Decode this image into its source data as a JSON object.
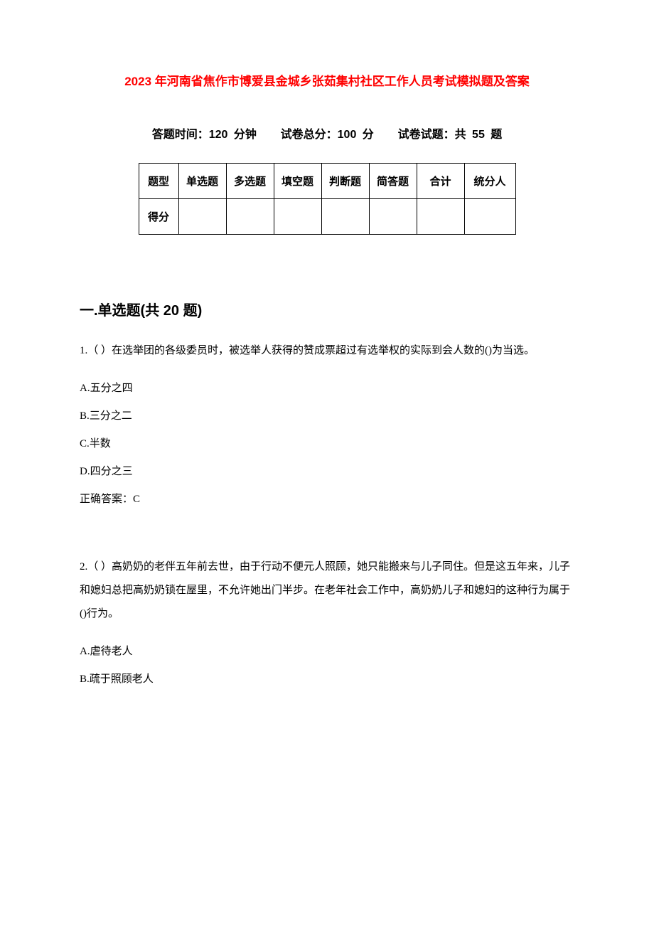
{
  "document": {
    "title": "2023 年河南省焦作市博爱县金城乡张茹集村社区工作人员考试模拟题及答案",
    "title_color": "#ff0000",
    "title_fontsize": 17,
    "background_color": "#ffffff",
    "text_color": "#000000"
  },
  "exam_info": {
    "time_label": "答题时间：",
    "time_value": "120 分钟",
    "score_label": "试卷总分：",
    "score_value": "100 分",
    "count_label": "试卷试题：",
    "count_value": "共 55 题"
  },
  "score_table": {
    "border_color": "#000000",
    "header_row": {
      "label": "题型",
      "columns": [
        "单选题",
        "多选题",
        "填空题",
        "判断题",
        "简答题",
        "合计",
        "统分人"
      ]
    },
    "score_row": {
      "label": "得分",
      "values": [
        "",
        "",
        "",
        "",
        "",
        "",
        ""
      ]
    },
    "column_widths": {
      "row_header": 56,
      "type_col": 67,
      "total_col": 67,
      "scorer_col": 72
    }
  },
  "section": {
    "heading": "一.单选题(共 20 题)",
    "heading_fontsize": 20
  },
  "questions": [
    {
      "number": "1.",
      "text": "（ ）在选举团的各级委员时，被选举人获得的赞成票超过有选举权的实际到会人数的()为当选。",
      "options": {
        "A": "A.五分之四",
        "B": "B.三分之二",
        "C": "C.半数",
        "D": "D.四分之三"
      },
      "answer_label": "正确答案：",
      "answer_value": "C"
    },
    {
      "number": "2.",
      "text": "（ ）高奶奶的老伴五年前去世，由于行动不便元人照顾，她只能搬来与儿子同住。但是这五年来，儿子和媳妇总把高奶奶锁在屋里，不允许她出门半步。在老年社会工作中，高奶奶儿子和媳妇的这种行为属于()行为。",
      "options": {
        "A": "A.虐待老人",
        "B": "B.疏于照顾老人"
      }
    }
  ]
}
